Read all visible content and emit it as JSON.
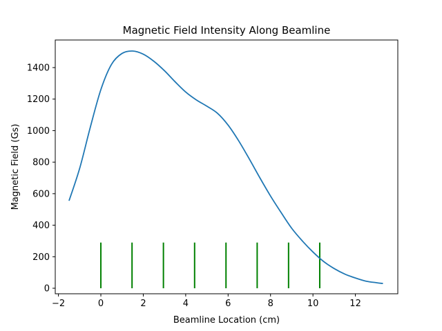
{
  "chart_data": {
    "type": "line",
    "title": "Magnetic Field Intensity Along Beamline",
    "xlabel": "Beamline Location (cm)",
    "ylabel": "Magnetic Field (Gs)",
    "xlim": [
      -2.15,
      14.0
    ],
    "ylim": [
      -35,
      1575
    ],
    "x_ticks": [
      -2,
      0,
      2,
      4,
      6,
      8,
      10,
      12
    ],
    "x_tick_labels": [
      "−2",
      "0",
      "2",
      "4",
      "6",
      "8",
      "10",
      "12"
    ],
    "y_ticks": [
      0,
      200,
      400,
      600,
      800,
      1000,
      1200,
      1400
    ],
    "y_tick_labels": [
      "0",
      "200",
      "400",
      "600",
      "800",
      "1000",
      "1200",
      "1400"
    ],
    "grid": false,
    "series": [
      {
        "color": "#1f77b4",
        "x": [
          -1.5,
          -1.0,
          -0.5,
          0.0,
          0.5,
          1.0,
          1.5,
          2.0,
          2.5,
          3.0,
          3.5,
          4.0,
          4.5,
          5.0,
          5.5,
          6.0,
          6.5,
          7.0,
          7.5,
          8.0,
          8.5,
          9.0,
          9.5,
          10.0,
          10.5,
          11.0,
          11.5,
          12.0,
          12.5,
          13.0,
          13.3
        ],
        "y": [
          555,
          760,
          1020,
          1260,
          1420,
          1490,
          1505,
          1485,
          1440,
          1380,
          1310,
          1245,
          1195,
          1155,
          1110,
          1035,
          935,
          820,
          700,
          585,
          480,
          380,
          300,
          230,
          170,
          125,
          90,
          65,
          45,
          35,
          30
        ]
      }
    ],
    "markers": {
      "color": "#008000",
      "height": 290,
      "x": [
        0.0,
        1.47,
        2.95,
        4.42,
        5.9,
        7.37,
        8.85,
        10.32
      ]
    }
  }
}
